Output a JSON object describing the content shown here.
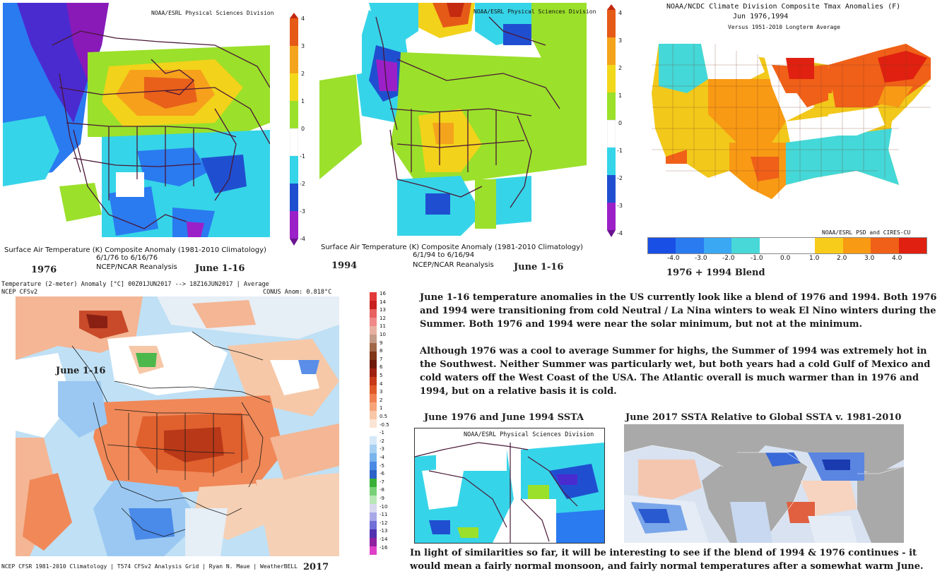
{
  "panel_1976": {
    "credit": "NOAA/ESRL Physical Sciences Division",
    "caption_line1": "Surface Air Temperature (K) Composite Anomaly (1981-2010 Climatology)",
    "caption_line2": "6/1/76  to 6/16/76",
    "caption_line3": "NCEP/NCAR Reanalysis",
    "year_label": "1976",
    "date_label": "June 1-16",
    "colorbar_ticks": [
      "4",
      "3",
      "2",
      "1",
      "0",
      "-1",
      "-2",
      "-3",
      "-4"
    ]
  },
  "panel_1994": {
    "credit": "NOAA/ESRL Physical Sciences Division",
    "caption_line1": "Surface Air Temperature (K) Composite Anomaly (1981-2010 Climatology)",
    "caption_line2": "6/1/94  to 6/16/94",
    "caption_line3": "NCEP/NCAR Reanalysis",
    "year_label": "1994",
    "date_label": "June 1-16",
    "colorbar_ticks": [
      "4",
      "3",
      "2",
      "1",
      "0",
      "-1",
      "-2",
      "-3",
      "-4"
    ]
  },
  "panel_blend": {
    "title_line1": "NOAA/NCDC Climate Division Composite Tmax Anomalies (F)",
    "title_line2": "Jun  1976,1994",
    "title_line3": "Versus 1951-2010 Longterm Average",
    "credit": "NOAA/ESRL PSD and CIRES-CU",
    "scale_ticks": [
      "-4.0",
      "-3.0",
      "-2.0",
      "-1.0",
      "0.0",
      "1.0",
      "2.0",
      "3.0",
      "4.0"
    ],
    "scale_colors": [
      "#1a4fe6",
      "#2a7af0",
      "#3aa8f2",
      "#48d8d8",
      "#ffffff",
      "#ffffff",
      "#f8cc1a",
      "#f89a14",
      "#f06018",
      "#e02010"
    ],
    "label": "1976 + 1994 Blend"
  },
  "panel_2017": {
    "header_line1": "Temperature (2-meter) Anomaly  [°C] 00Z01JUN2017 --> 18Z16JUN2017 | Average",
    "header_model": "NCEP CFSv2",
    "header_anom": "CONUS Anom: 0.818°C",
    "inset_label": "June 1-16",
    "footer": "NCEP CFSR 1981-2010 Climatology | T574 CFSv2 Analysis Grid | Ryan N. Maue | WeatherBELL",
    "year_label": "2017",
    "colorbar_ticks": [
      "16",
      "14",
      "13",
      "12",
      "11",
      "10",
      "9",
      "8",
      "7",
      "6",
      "5",
      "4",
      "3",
      "2",
      "1",
      "0.5",
      "-0.5",
      "-1",
      "-2",
      "-3",
      "-4",
      "-5",
      "-6",
      "-7",
      "-8",
      "-9",
      "-10",
      "-11",
      "-12",
      "-13",
      "-14",
      "-16"
    ]
  },
  "text": {
    "paragraph1": "June 1-16 temperature anomalies in the US currently look like a blend of 1976 and 1994. Both 1976 and 1994 were transitioning from cold Neutral / La Nina winters to weak El Nino winters during the Summer. Both 1976 and 1994 were near the solar minimum, but not at the minimum.",
    "paragraph2": "Although 1976 was a cool to average Summer for highs, the Summer of 1994 was extremely hot in the Southwest. Neither Summer was particularly wet, but both years had a cold Gulf of Mexico and cold waters off the West Coast of the USA. The Atlantic overall is much warmer than in 1976 and 1994, but on a relative basis it is cold.",
    "conclusion": "In light of similarities so far, it will be interesting to see if the blend of 1994 & 1976 continues - it would mean a fairly normal monsoon, and fairly normal temperatures after a somewhat warm June."
  },
  "ssta_1976_1994": {
    "title": "June 1976 and June 1994 SSTA",
    "credit": "NOAA/ESRL Physical Sciences Division"
  },
  "ssta_2017": {
    "title": "June 2017 SSTA Relative to Global SSTA v. 1981-2010"
  }
}
